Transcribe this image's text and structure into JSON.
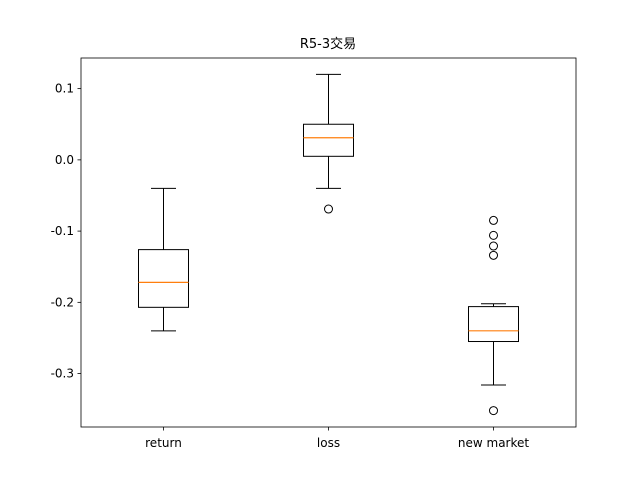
{
  "chart_data": {
    "type": "box",
    "title": "R5-3交易",
    "xlabel": "",
    "ylabel": "",
    "ylim": [
      -0.375,
      0.143
    ],
    "yticks": [
      0.1,
      0.0,
      -0.1,
      -0.2,
      -0.3
    ],
    "ytick_labels": [
      "0.1",
      "0.0",
      "-0.1",
      "-0.2",
      "-0.3"
    ],
    "categories": [
      "return",
      "loss",
      "new market"
    ],
    "boxes": [
      {
        "label": "return",
        "whisker_low": -0.24,
        "q1": -0.207,
        "median": -0.172,
        "q3": -0.126,
        "whisker_high": -0.04,
        "outliers": []
      },
      {
        "label": "loss",
        "whisker_low": -0.04,
        "q1": 0.005,
        "median": 0.031,
        "q3": 0.05,
        "whisker_high": 0.12,
        "outliers": [
          -0.069
        ]
      },
      {
        "label": "new market",
        "whisker_low": -0.316,
        "q1": -0.255,
        "median": -0.24,
        "q3": -0.206,
        "whisker_high": -0.202,
        "outliers": [
          -0.085,
          -0.106,
          -0.121,
          -0.134,
          -0.352
        ]
      }
    ],
    "colors": {
      "box": "#000000",
      "median": "#ff7f0e",
      "outlier": "#000000"
    },
    "grid": false
  }
}
